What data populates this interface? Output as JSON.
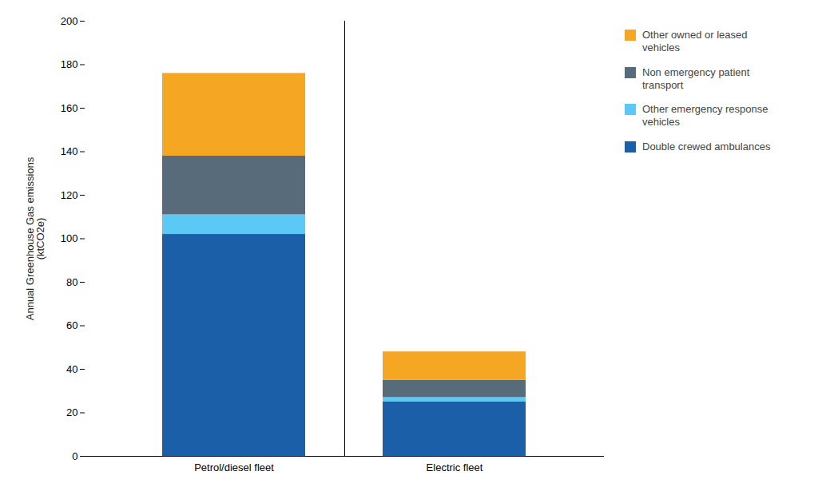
{
  "chart_data": {
    "type": "bar",
    "stacked": true,
    "categories": [
      "Petrol/diesel fleet",
      "Electric fleet"
    ],
    "series": [
      {
        "name": "Double crewed ambulances",
        "color": "#1a5fa8",
        "values": [
          102,
          25
        ]
      },
      {
        "name": "Other emergency response\nvehicles",
        "color": "#5bc8f5",
        "values": [
          9,
          2
        ]
      },
      {
        "name": "Non emergency patient\ntransport",
        "color": "#586b7a",
        "values": [
          27,
          8
        ]
      },
      {
        "name": "Other owned or leased\nvehicles",
        "color": "#f5a623",
        "values": [
          38,
          13
        ]
      }
    ],
    "ylabel": "Annual Greenhouse Gas emissions\n(ktCO2e)",
    "ylim": [
      0,
      200
    ],
    "yticks": [
      0,
      20,
      40,
      60,
      80,
      100,
      120,
      140,
      160,
      180,
      200
    ],
    "grid": false,
    "legend": "upper right"
  }
}
